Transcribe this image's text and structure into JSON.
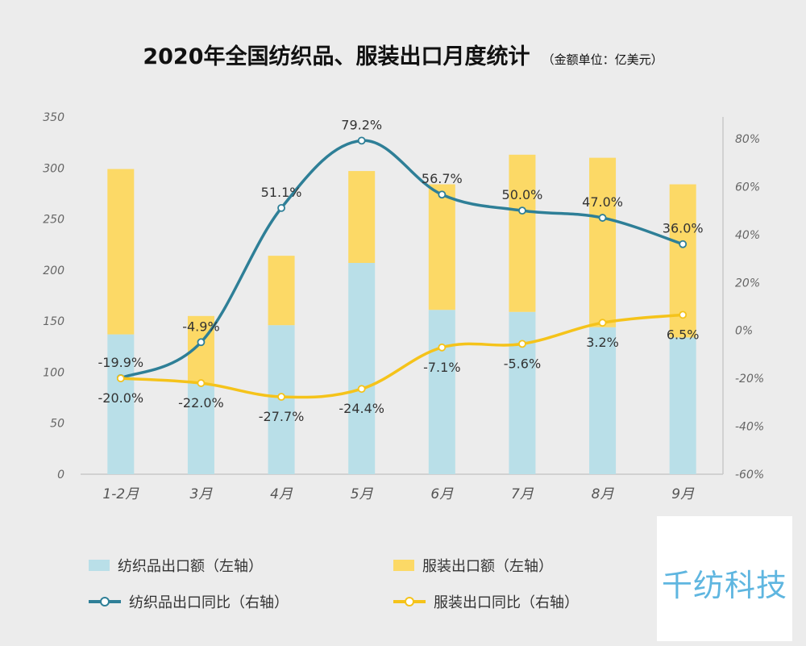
{
  "header": {
    "title": "2020年全国纺织品、服装出口月度统计",
    "unit": "（金额单位：亿美元）"
  },
  "colors": {
    "textile_bar": "#b9dfe8",
    "apparel_bar": "#fcd966",
    "textile_line": "#2e7f97",
    "apparel_line": "#f5c31a",
    "axis": "#c8c8c8"
  },
  "legend": {
    "textile_export": "纺织品出口额（左轴）",
    "apparel_export": "服装出口额（左轴）",
    "textile_yoy": "纺织品出口同比（右轴）",
    "apparel_yoy": "服装出口同比（右轴）"
  },
  "watermark": {
    "text": "千纺科技"
  },
  "chart_data": {
    "type": "bar",
    "categories": [
      "1-2月",
      "3月",
      "4月",
      "5月",
      "6月",
      "7月",
      "8月",
      "9月"
    ],
    "y_left": {
      "ylim": [
        0,
        350
      ],
      "ticks": [
        "0",
        "50",
        "100",
        "150",
        "200",
        "250",
        "300",
        "350"
      ]
    },
    "y_right": {
      "ylim": [
        -60,
        90
      ],
      "ticks": [
        "-60%",
        "-40%",
        "-20%",
        "0%",
        "20%",
        "40%",
        "60%",
        "80%"
      ]
    },
    "series": [
      {
        "name": "纺织品出口额（左轴）",
        "type": "bar",
        "axis": "left",
        "stacked": true,
        "values": [
          137,
          89,
          146,
          207,
          161,
          159,
          144,
          134
        ]
      },
      {
        "name": "服装出口额（左轴）",
        "type": "bar",
        "axis": "left",
        "stacked": true,
        "values": [
          162,
          66,
          68,
          90,
          123,
          154,
          166,
          150
        ]
      },
      {
        "name": "纺织品出口同比（右轴）",
        "type": "line",
        "axis": "right",
        "values": [
          -19.9,
          -4.9,
          51.1,
          79.2,
          56.7,
          50.0,
          47.0,
          36.0
        ],
        "labels": [
          "-19.9%",
          "-4.9%",
          "51.1%",
          "79.2%",
          "56.7%",
          "50.0%",
          "47.0%",
          "36.0%"
        ]
      },
      {
        "name": "服装出口同比（右轴）",
        "type": "line",
        "axis": "right",
        "values": [
          -20.0,
          -22.0,
          -27.7,
          -24.4,
          -7.1,
          -5.6,
          3.2,
          6.5
        ],
        "labels": [
          "-20.0%",
          "-22.0%",
          "-27.7%",
          "-24.4%",
          "-7.1%",
          "-5.6%",
          "3.2%",
          "6.5%"
        ]
      }
    ]
  }
}
